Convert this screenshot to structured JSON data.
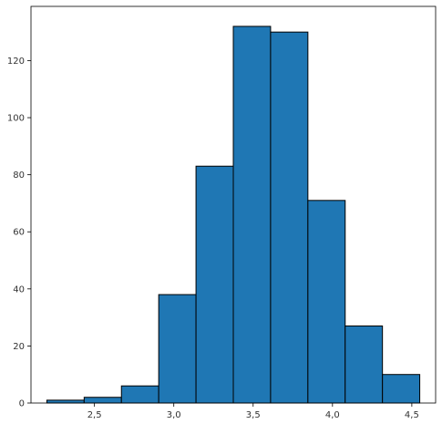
{
  "chart_data": {
    "type": "bar",
    "title": "",
    "xlabel": "",
    "ylabel": "",
    "bins": [
      {
        "x0": 2.2,
        "x1": 2.435,
        "count": 1
      },
      {
        "x0": 2.435,
        "x1": 2.67,
        "count": 2
      },
      {
        "x0": 2.67,
        "x1": 2.905,
        "count": 6
      },
      {
        "x0": 2.905,
        "x1": 3.14,
        "count": 38
      },
      {
        "x0": 3.14,
        "x1": 3.375,
        "count": 83
      },
      {
        "x0": 3.375,
        "x1": 3.61,
        "count": 132
      },
      {
        "x0": 3.61,
        "x1": 3.845,
        "count": 130
      },
      {
        "x0": 3.845,
        "x1": 4.08,
        "count": 71
      },
      {
        "x0": 4.08,
        "x1": 4.315,
        "count": 27
      },
      {
        "x0": 4.315,
        "x1": 4.55,
        "count": 10
      }
    ],
    "xlim": [
      2.1,
      4.65
    ],
    "ylim": [
      0,
      139
    ],
    "xticks": [
      {
        "value": 2.5,
        "label": "2,5"
      },
      {
        "value": 3.0,
        "label": "3,0"
      },
      {
        "value": 3.5,
        "label": "3,5"
      },
      {
        "value": 4.0,
        "label": "4,0"
      },
      {
        "value": 4.5,
        "label": "4,5"
      }
    ],
    "yticks": [
      {
        "value": 0,
        "label": "0"
      },
      {
        "value": 20,
        "label": "20"
      },
      {
        "value": 40,
        "label": "40"
      },
      {
        "value": 60,
        "label": "60"
      },
      {
        "value": 80,
        "label": "80"
      },
      {
        "value": 100,
        "label": "100"
      },
      {
        "value": 120,
        "label": "120"
      }
    ],
    "bar_color": "#1f77b4",
    "edge_color": "#000000",
    "grid": false,
    "legend": "none"
  }
}
